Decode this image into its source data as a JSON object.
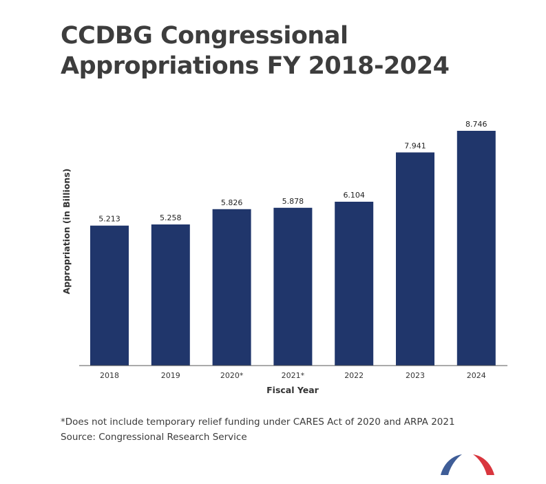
{
  "title_lines": [
    "CCDBG Congressional",
    "Appropriations FY 2018-2024"
  ],
  "chart_data": {
    "type": "bar",
    "title": "CCDBG Congressional Appropriations FY 2018-2024",
    "categories": [
      "2018",
      "2019",
      "2020*",
      "2021*",
      "2022",
      "2023",
      "2024"
    ],
    "values": [
      5.213,
      5.258,
      5.826,
      5.878,
      6.104,
      7.941,
      8.746
    ],
    "data_labels": [
      "5.213",
      "5.258",
      "5.826",
      "5.878",
      "6.104",
      "7.941",
      "8.746"
    ],
    "xlabel": "Fiscal Year",
    "ylabel": "Appropriation (in Billions)",
    "ylim": [
      0,
      8.746
    ],
    "grid": false,
    "bar_color": "#20366b"
  },
  "footnote": {
    "note": "*Does not include temporary relief funding under CARES Act of 2020 and ARPA 2021",
    "source": "Source: Congressional Research Service"
  },
  "logo": {
    "left_color": "#3f5d97",
    "right_color": "#d9363e"
  }
}
